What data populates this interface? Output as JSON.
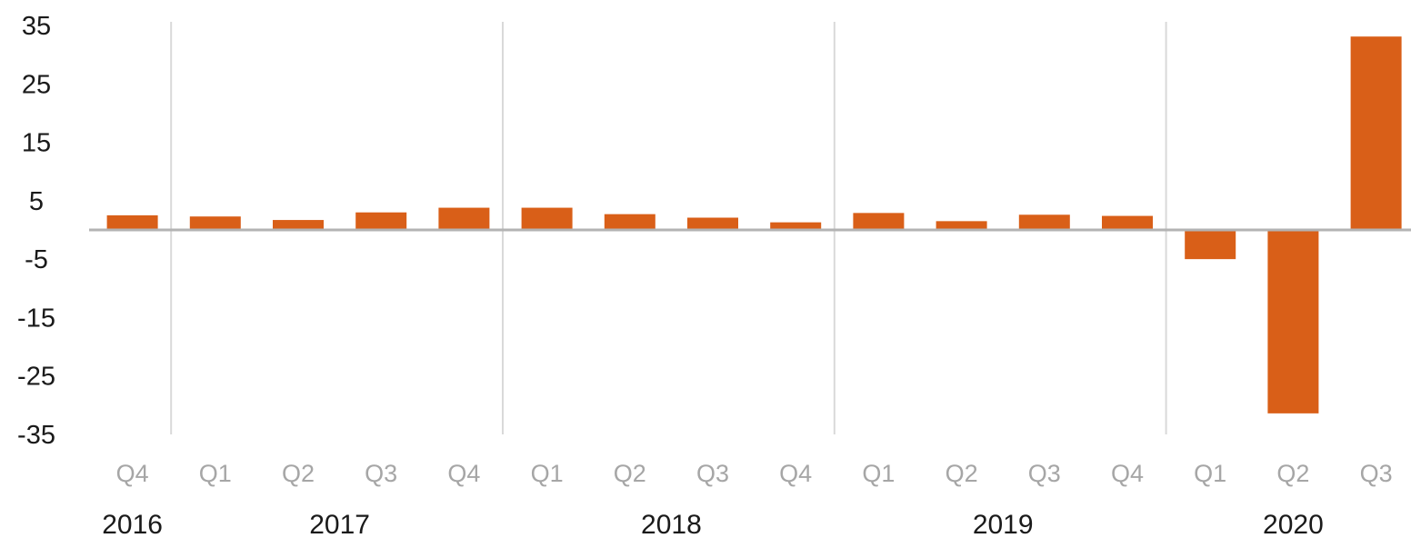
{
  "chart_data": {
    "type": "bar",
    "title": "",
    "xlabel": "",
    "ylabel": "",
    "ylim": [
      -35,
      35
    ],
    "yticks": [
      "35",
      "25",
      "15",
      "5",
      "-5",
      "-15",
      "-25",
      "-35"
    ],
    "categories": [
      "Q4",
      "Q1",
      "Q2",
      "Q3",
      "Q4",
      "Q1",
      "Q2",
      "Q3",
      "Q4",
      "Q1",
      "Q2",
      "Q3",
      "Q4",
      "Q1",
      "Q2",
      "Q3"
    ],
    "years": [
      {
        "label": "2016",
        "start": 0,
        "count": 1
      },
      {
        "label": "2017",
        "start": 1,
        "count": 4
      },
      {
        "label": "2018",
        "start": 5,
        "count": 4
      },
      {
        "label": "2019",
        "start": 9,
        "count": 4
      },
      {
        "label": "2020",
        "start": 13,
        "count": 3
      }
    ],
    "series": [
      {
        "values": [
          2.5,
          2.3,
          1.7,
          3.0,
          3.8,
          3.8,
          2.7,
          2.1,
          1.3,
          2.9,
          1.5,
          2.6,
          2.4,
          -5.0,
          -31.4,
          33.1
        ]
      }
    ],
    "colors": {
      "bar": "#d95f18",
      "zero_line": "#b3b3b3",
      "year_separator": "#d9d9d9"
    },
    "grid": false,
    "legend": "none"
  }
}
